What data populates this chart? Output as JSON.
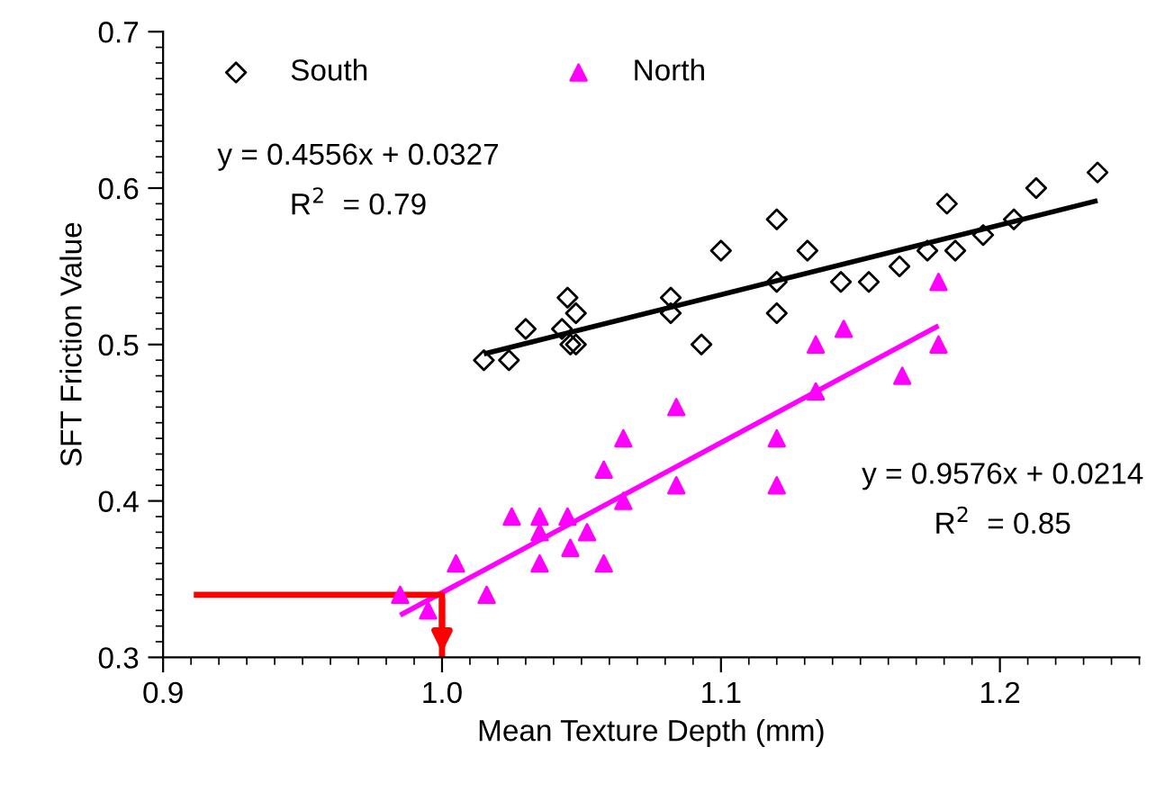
{
  "chart_data": {
    "type": "scatter",
    "xlabel": "Mean Texture Depth (mm)",
    "ylabel": "SFT Friction Value",
    "xlim": [
      0.9,
      1.25
    ],
    "ylim": [
      0.3,
      0.7
    ],
    "xticks": [
      {
        "value": 0.9,
        "label": "0.9"
      },
      {
        "value": 1.0,
        "label": "1.0"
      },
      {
        "value": 1.1,
        "label": "1.1"
      },
      {
        "value": 1.2,
        "label": "1.2"
      }
    ],
    "yticks": [
      {
        "value": 0.3,
        "label": "0.3"
      },
      {
        "value": 0.4,
        "label": "0.4"
      },
      {
        "value": 0.5,
        "label": "0.5"
      },
      {
        "value": 0.6,
        "label": "0.6"
      },
      {
        "value": 0.7,
        "label": "0.7"
      }
    ],
    "grid": false,
    "legend": "top",
    "series": [
      {
        "name": "South",
        "marker": "diamond",
        "color": "#000000",
        "x": [
          1.015,
          1.024,
          1.03,
          1.043,
          1.045,
          1.048,
          1.046,
          1.048,
          1.082,
          1.082,
          1.093,
          1.1,
          1.12,
          1.12,
          1.12,
          1.131,
          1.143,
          1.153,
          1.164,
          1.174,
          1.181,
          1.184,
          1.194,
          1.205,
          1.213,
          1.235
        ],
        "values": [
          0.49,
          0.49,
          0.51,
          0.51,
          0.53,
          0.52,
          0.5,
          0.5,
          0.53,
          0.52,
          0.5,
          0.56,
          0.58,
          0.54,
          0.52,
          0.56,
          0.54,
          0.54,
          0.55,
          0.56,
          0.59,
          0.56,
          0.57,
          0.58,
          0.6,
          0.61
        ]
      },
      {
        "name": "North",
        "marker": "triangle",
        "color": "#ff00ff",
        "x": [
          0.985,
          0.995,
          1.005,
          1.016,
          1.025,
          1.035,
          1.035,
          1.035,
          1.045,
          1.046,
          1.052,
          1.058,
          1.058,
          1.065,
          1.065,
          1.084,
          1.084,
          1.12,
          1.12,
          1.134,
          1.165,
          1.134,
          1.144,
          1.178,
          1.178
        ],
        "values": [
          0.34,
          0.33,
          0.36,
          0.34,
          0.39,
          0.39,
          0.38,
          0.36,
          0.39,
          0.37,
          0.38,
          0.42,
          0.36,
          0.44,
          0.4,
          0.46,
          0.41,
          0.44,
          0.41,
          0.47,
          0.48,
          0.5,
          0.51,
          0.54,
          0.5
        ]
      },
      {
        "type": "line",
        "color": "#000000",
        "x": [
          1.015,
          1.235
        ],
        "values": [
          0.494,
          0.592
        ]
      },
      {
        "type": "line",
        "color": "#ff00ff",
        "x": [
          0.985,
          1.178
        ],
        "values": [
          0.327,
          0.512
        ]
      },
      {
        "type": "line",
        "color": "#ff0000",
        "x": [
          0.911,
          1.0,
          1.0
        ],
        "values": [
          0.34,
          0.34,
          0.3
        ]
      }
    ],
    "annotations": [
      "y = 0.4556x + 0.0327",
      "R$^{2}$  = 0.79",
      "y = 0.9576x + 0.0214",
      "R$^{2}$  = 0.85"
    ]
  }
}
